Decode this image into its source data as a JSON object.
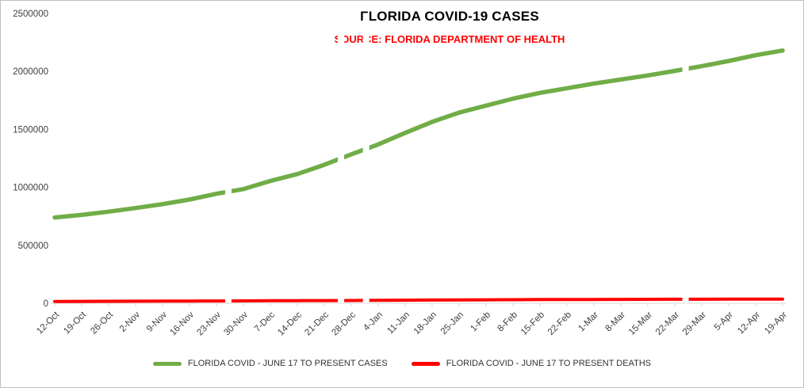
{
  "title": "FLORIDA COVID-19 CASES",
  "subtitle": "SOURCE: FLORIDA DEPARTMENT OF HEALTH",
  "colors": {
    "cases_line": "#70ad47",
    "deaths_line": "#ff0000",
    "title_text": "#000000",
    "subtitle_text": "#ff0000",
    "axis_text": "#404040"
  },
  "chart_data": {
    "type": "line",
    "title": "FLORIDA COVID-19 CASES",
    "subtitle": "SOURCE: FLORIDA DEPARTMENT OF HEALTH",
    "xlabel": "",
    "ylabel": "",
    "ylim": [
      0,
      2500000
    ],
    "yticks": [
      0,
      500000,
      1000000,
      1500000,
      2000000,
      2500000
    ],
    "grid": false,
    "legend_position": "bottom",
    "categories": [
      "12-Oct",
      "19-Oct",
      "26-Oct",
      "2-Nov",
      "9-Nov",
      "16-Nov",
      "23-Nov",
      "30-Nov",
      "7-Dec",
      "14-Dec",
      "21-Dec",
      "28-Dec",
      "4-Jan",
      "11-Jan",
      "18-Jan",
      "25-Jan",
      "1-Feb",
      "8-Feb",
      "15-Feb",
      "22-Feb",
      "1-Mar",
      "8-Mar",
      "15-Mar",
      "22-Mar",
      "29-Mar",
      "5-Apr",
      "12-Apr",
      "19-Apr"
    ],
    "series": [
      {
        "name": "FLORIDA COVID - JUNE 17 TO PRESENT CASES",
        "color": "#70ad47",
        "values": [
          740000,
          762000,
          790000,
          822000,
          855000,
          895000,
          945000,
          985000,
          1055000,
          1115000,
          1195000,
          1285000,
          1370000,
          1470000,
          1565000,
          1645000,
          1705000,
          1765000,
          1815000,
          1855000,
          1895000,
          1930000,
          1965000,
          2005000,
          2045000,
          2090000,
          2140000,
          2180000
        ]
      },
      {
        "name": "FLORIDA COVID - JUNE 17 TO PRESENT DEATHS",
        "color": "#ff0000",
        "values": [
          15500,
          16200,
          16900,
          17600,
          18400,
          19200,
          20000,
          20800,
          21600,
          22400,
          23300,
          24200,
          25300,
          26500,
          27800,
          29000,
          30000,
          31000,
          31800,
          32500,
          33100,
          33700,
          34200,
          34700,
          35100,
          35500,
          35800,
          36000
        ]
      }
    ],
    "data_gaps": [
      {
        "date": "26-Nov",
        "index": 6.44
      },
      {
        "date": "25-Dec",
        "index": 10.62
      },
      {
        "date": "1-Jan",
        "index": 11.55
      },
      {
        "date": "28-Mar",
        "index": 23.4
      }
    ]
  }
}
